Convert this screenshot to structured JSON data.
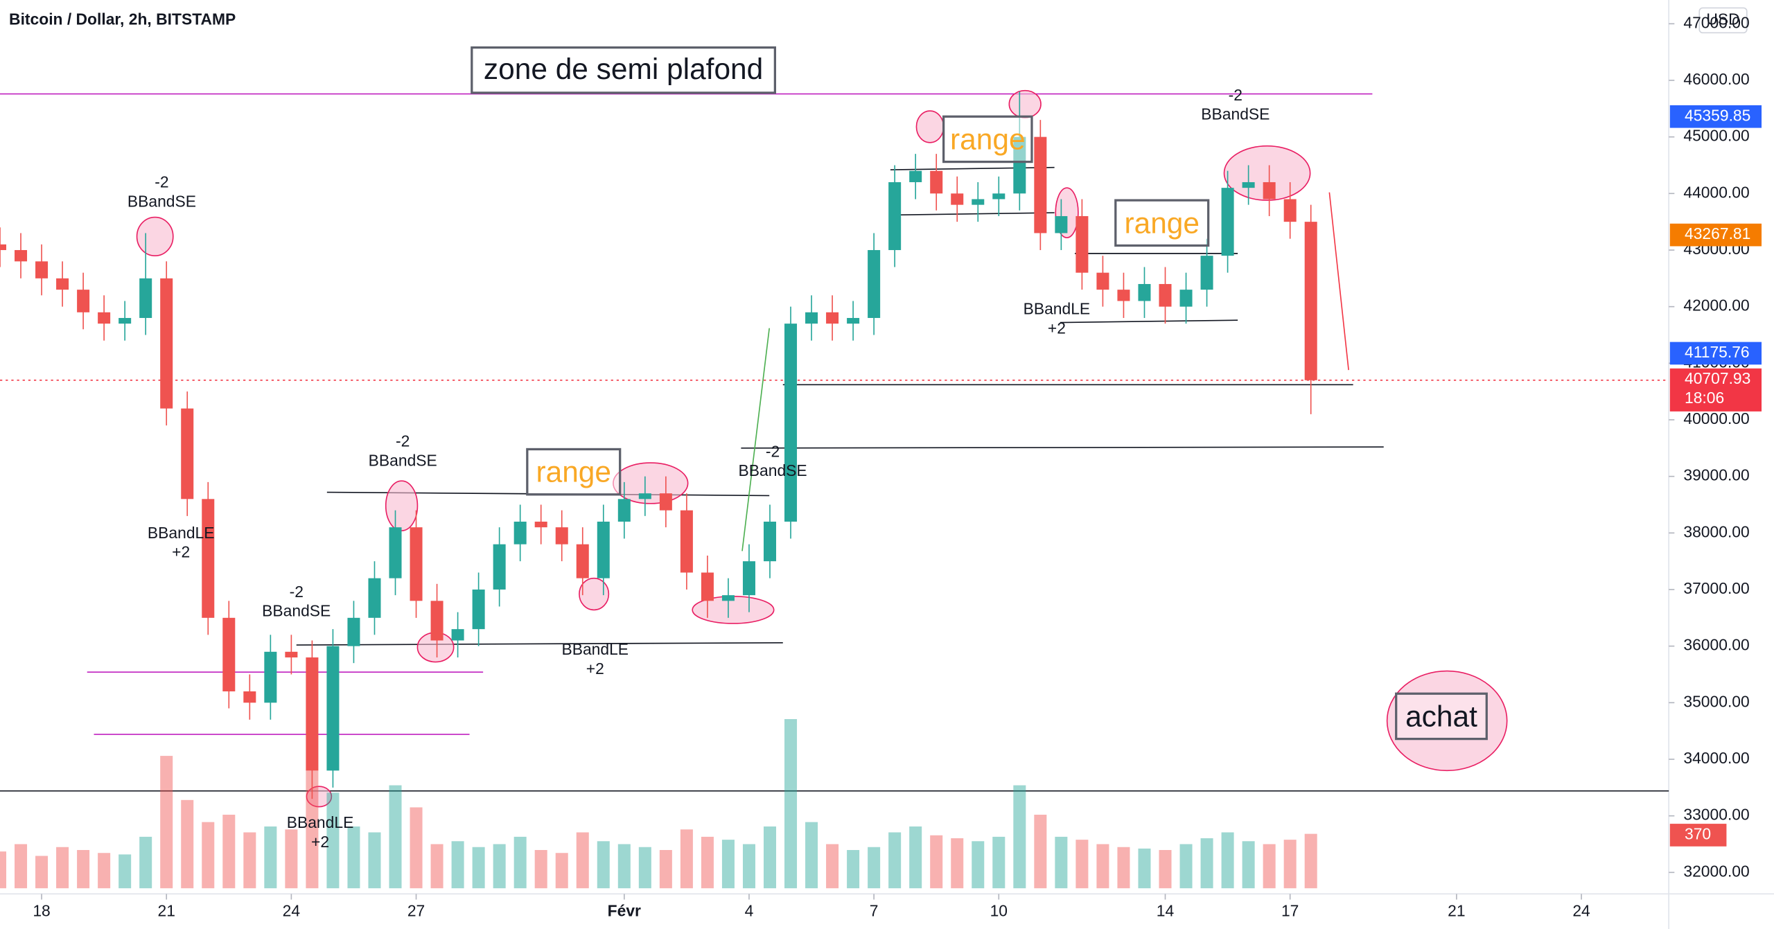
{
  "chart_data": {
    "type": "candlestick",
    "title": "Bitcoin / Dollar, 2h, BITSTAMP",
    "currency": "USD",
    "x": [
      -1,
      -0.5,
      0,
      0.5,
      1,
      1.5,
      2,
      2.5,
      3,
      3.5,
      4,
      4.5,
      5,
      5.5,
      6,
      6.5,
      7,
      7.5,
      8,
      8.5,
      9,
      9.5,
      10,
      10.5,
      11,
      11.5,
      12,
      12.5,
      13,
      13.5,
      14,
      14.5,
      15,
      15.5,
      16,
      16.5,
      17,
      17.5,
      18,
      18.5,
      19,
      19.5,
      20,
      20.5,
      21,
      21.5,
      22,
      22.5,
      23,
      23.5,
      24,
      24.5,
      25,
      25.5,
      26,
      26.5,
      27,
      27.5,
      28,
      28.5,
      29,
      29.5,
      30,
      30.5
    ],
    "open": [
      43100,
      43000,
      42800,
      42500,
      42300,
      41900,
      41700,
      41800,
      42500,
      40200,
      38600,
      36500,
      35200,
      35000,
      35900,
      35800,
      33800,
      36000,
      36500,
      37200,
      38100,
      36800,
      36100,
      36300,
      37000,
      37800,
      38200,
      38100,
      37800,
      37200,
      38200,
      38600,
      38700,
      38400,
      37300,
      36800,
      36900,
      37500,
      38200,
      41700,
      41900,
      41700,
      41800,
      43000,
      44200,
      44400,
      44000,
      43800,
      43900,
      44000,
      45000,
      43300,
      43600,
      42600,
      42300,
      42100,
      42400,
      42000,
      42300,
      42900,
      44100,
      44200,
      43900,
      43500
    ],
    "high": [
      43400,
      43300,
      43100,
      42800,
      42600,
      42200,
      42100,
      43300,
      42800,
      40500,
      38900,
      36800,
      35500,
      36200,
      36200,
      36100,
      36300,
      36800,
      37500,
      38400,
      38400,
      37100,
      36600,
      37300,
      38100,
      38500,
      38500,
      38400,
      38100,
      38500,
      38900,
      39000,
      39000,
      38700,
      37600,
      37200,
      37800,
      38500,
      42000,
      42200,
      42200,
      42100,
      43300,
      44500,
      44700,
      44700,
      44300,
      44200,
      44300,
      45800,
      45300,
      43900,
      43900,
      42900,
      42600,
      42700,
      42700,
      42600,
      43200,
      44400,
      44500,
      44500,
      44200,
      43800
    ],
    "low": [
      42700,
      42500,
      42200,
      42000,
      41600,
      41400,
      41400,
      41500,
      39900,
      38300,
      36200,
      34900,
      34700,
      34700,
      35500,
      33300,
      33500,
      35700,
      36200,
      36900,
      36500,
      35800,
      35800,
      36000,
      36700,
      37500,
      37800,
      37500,
      36900,
      36900,
      37900,
      38300,
      38100,
      37000,
      36500,
      36500,
      36600,
      37200,
      37900,
      41400,
      41400,
      41400,
      41500,
      42700,
      43900,
      43700,
      43500,
      43500,
      43600,
      43700,
      43000,
      43000,
      42300,
      42000,
      41800,
      41800,
      41700,
      41700,
      42000,
      42600,
      43800,
      43600,
      43200,
      40100
    ],
    "close": [
      43000,
      42800,
      42500,
      42300,
      41900,
      41700,
      41800,
      42500,
      40200,
      38600,
      36500,
      35200,
      35000,
      35900,
      35800,
      33800,
      36000,
      36500,
      37200,
      38100,
      36800,
      36100,
      36300,
      37000,
      37800,
      38200,
      38100,
      37800,
      37200,
      38200,
      38600,
      38700,
      38400,
      37300,
      36800,
      36900,
      37500,
      38200,
      41700,
      41900,
      41700,
      41800,
      43000,
      44200,
      44400,
      44000,
      43800,
      43900,
      44000,
      45000,
      43300,
      43600,
      42600,
      42300,
      42100,
      42400,
      42000,
      42300,
      42900,
      44100,
      44200,
      43900,
      43500,
      40700
    ],
    "volume": [
      250,
      300,
      220,
      280,
      260,
      240,
      230,
      350,
      900,
      600,
      450,
      500,
      380,
      420,
      400,
      800,
      650,
      420,
      380,
      700,
      550,
      300,
      320,
      280,
      300,
      350,
      260,
      240,
      380,
      320,
      300,
      280,
      260,
      400,
      350,
      330,
      300,
      420,
      1150,
      450,
      300,
      260,
      280,
      380,
      420,
      360,
      340,
      320,
      350,
      700,
      500,
      350,
      330,
      300,
      280,
      270,
      260,
      300,
      340,
      380,
      320,
      300,
      330,
      370
    ],
    "up_color": "#26a69a",
    "down_color": "#ef5350",
    "xlim": [
      -1.0,
      39.1
    ],
    "xticks": [
      {
        "value": 0,
        "label": "18"
      },
      {
        "value": 3,
        "label": "21"
      },
      {
        "value": 6,
        "label": "24"
      },
      {
        "value": 9,
        "label": "27"
      },
      {
        "value": 14,
        "label": "Févr"
      },
      {
        "value": 17,
        "label": "4"
      },
      {
        "value": 20,
        "label": "7"
      },
      {
        "value": 23,
        "label": "10"
      },
      {
        "value": 27,
        "label": "14"
      },
      {
        "value": 30,
        "label": "17"
      },
      {
        "value": 34,
        "label": "21"
      },
      {
        "value": 37,
        "label": "24"
      }
    ],
    "ylim": [
      31620,
      47420
    ],
    "yticks": [
      {
        "value": 32000,
        "label": "32000.00"
      },
      {
        "value": 33000,
        "label": "33000.00"
      },
      {
        "value": 34000,
        "label": "34000.00"
      },
      {
        "value": 35000,
        "label": "35000.00"
      },
      {
        "value": 36000,
        "label": "36000.00"
      },
      {
        "value": 37000,
        "label": "37000.00"
      },
      {
        "value": 38000,
        "label": "38000.00"
      },
      {
        "value": 39000,
        "label": "39000.00"
      },
      {
        "value": 40000,
        "label": "40000.00"
      },
      {
        "value": 41000,
        "label": "41000.00"
      },
      {
        "value": 42000,
        "label": "42000.00"
      },
      {
        "value": 43000,
        "label": "43000.00"
      },
      {
        "value": 44000,
        "label": "44000.00"
      },
      {
        "value": 45000,
        "label": "45000.00"
      },
      {
        "value": 46000,
        "label": "46000.00"
      },
      {
        "value": 47000,
        "label": "47000.00"
      }
    ],
    "price_tags": [
      {
        "value": 45359.85,
        "color": "#2962ff"
      },
      {
        "value": 43267.81,
        "color": "#f57c00"
      },
      {
        "value": 41175.76,
        "color": "#2962ff"
      },
      {
        "value": 40707.93,
        "color": "#f23645",
        "timer": "18:06"
      }
    ],
    "annotations": {
      "zone": "zone de semi plafond",
      "ranges": [
        "range",
        "range",
        "range"
      ],
      "buy": "achat",
      "signals": [
        {
          "offset": "-2",
          "label": "BBandSE"
        },
        {
          "offset": "-2",
          "label": "BBandSE"
        },
        {
          "offset": "-2",
          "label": "BBandSE"
        },
        {
          "offset": "-2",
          "label": "BBandSE"
        },
        {
          "offset": "-2",
          "label": "BBandSE"
        },
        {
          "label": "BBandLE",
          "offset": "+2"
        },
        {
          "label": "BBandLE",
          "offset": "+2"
        },
        {
          "label": "BBandLE",
          "offset": "+2"
        },
        {
          "label": "BBandLE",
          "offset": "+2"
        }
      ]
    }
  }
}
